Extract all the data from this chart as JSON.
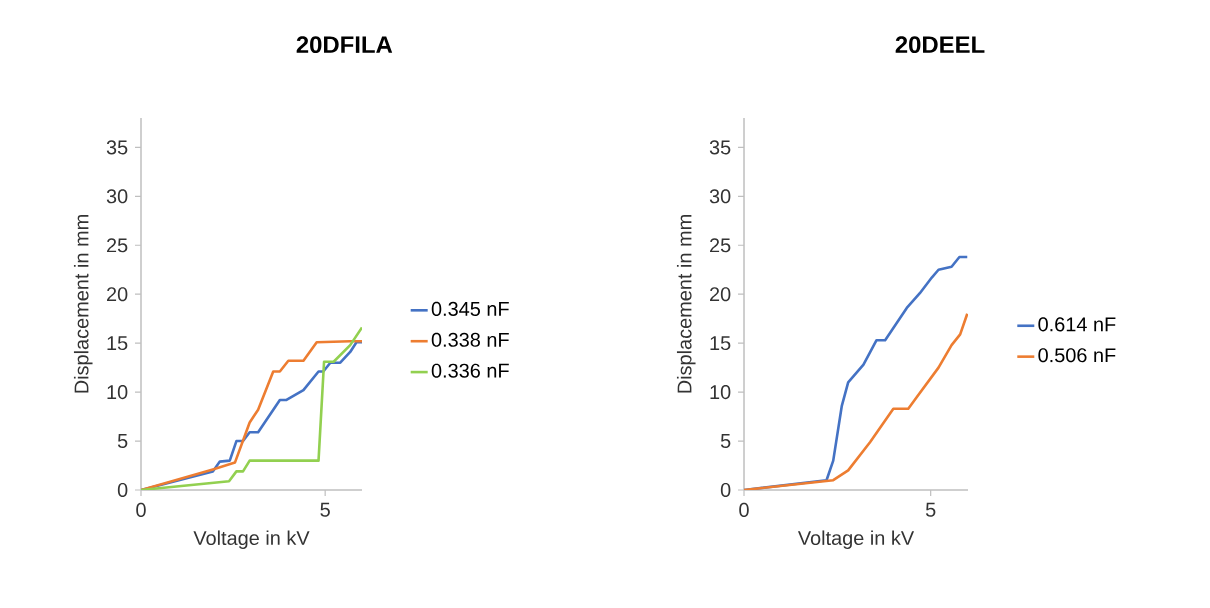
{
  "chart_data": [
    {
      "type": "line",
      "title": "20DFILA",
      "xlabel": "Voltage in kV",
      "ylabel": "Displacement in mm",
      "xlim": [
        0,
        6
      ],
      "ylim": [
        0,
        38
      ],
      "xticks": [
        0,
        5
      ],
      "yticks": [
        0,
        5,
        10,
        15,
        20,
        25,
        30,
        35
      ],
      "legend": "right",
      "series": [
        {
          "name": "0.345 nF",
          "color": "#4472c4",
          "x": [
            0,
            1.95,
            2.14,
            2.41,
            2.59,
            2.77,
            2.95,
            3.18,
            3.77,
            3.95,
            4.41,
            4.82,
            4.95,
            5.14,
            5.41,
            5.68,
            5.85,
            6.0
          ],
          "values": [
            0,
            1.9,
            2.9,
            3.0,
            5.0,
            5.0,
            5.9,
            5.9,
            9.2,
            9.2,
            10.2,
            12.1,
            12.1,
            13.0,
            13.0,
            14.1,
            15.1,
            15.1
          ]
        },
        {
          "name": "0.338 nF",
          "color": "#ed7d31",
          "x": [
            0,
            1.95,
            2.55,
            2.95,
            3.18,
            3.59,
            3.77,
            4.0,
            4.41,
            4.77,
            5.68,
            6.0
          ],
          "values": [
            0,
            2.1,
            2.8,
            6.9,
            8.2,
            12.1,
            12.1,
            13.2,
            13.2,
            15.1,
            15.2,
            15.2
          ]
        },
        {
          "name": "0.336 nF",
          "color": "#92d050",
          "x": [
            0,
            2.39,
            2.59,
            2.77,
            2.95,
            4.82,
            4.97,
            5.23,
            5.68,
            6.0
          ],
          "values": [
            0,
            0.9,
            1.9,
            1.9,
            3.0,
            3.0,
            13.1,
            13.1,
            14.8,
            16.6
          ]
        }
      ]
    },
    {
      "type": "line",
      "title": "20DEEL",
      "xlabel": "Voltage in kV",
      "ylabel": "Displacement in mm",
      "xlim": [
        0,
        6
      ],
      "ylim": [
        0,
        38
      ],
      "xticks": [
        0,
        5
      ],
      "yticks": [
        0,
        5,
        10,
        15,
        20,
        25,
        30,
        35
      ],
      "legend": "right",
      "series": [
        {
          "name": "0.614 nF",
          "color": "#4472c4",
          "x": [
            0,
            2.21,
            2.39,
            2.62,
            2.79,
            3.2,
            3.55,
            3.78,
            4.36,
            4.71,
            5.03,
            5.21,
            5.56,
            5.77,
            5.98
          ],
          "values": [
            0,
            1.0,
            3.0,
            8.6,
            11.0,
            12.8,
            15.3,
            15.3,
            18.6,
            20.1,
            21.7,
            22.5,
            22.8,
            23.8,
            23.8
          ]
        },
        {
          "name": "0.506 nF",
          "color": "#ed7d31",
          "x": [
            0,
            2.39,
            2.79,
            3.38,
            4.0,
            4.4,
            4.63,
            5.21,
            5.56,
            5.79,
            5.98
          ],
          "values": [
            0,
            1.0,
            2.0,
            4.9,
            8.3,
            8.3,
            9.5,
            12.5,
            14.8,
            15.9,
            18.0
          ]
        }
      ]
    }
  ]
}
